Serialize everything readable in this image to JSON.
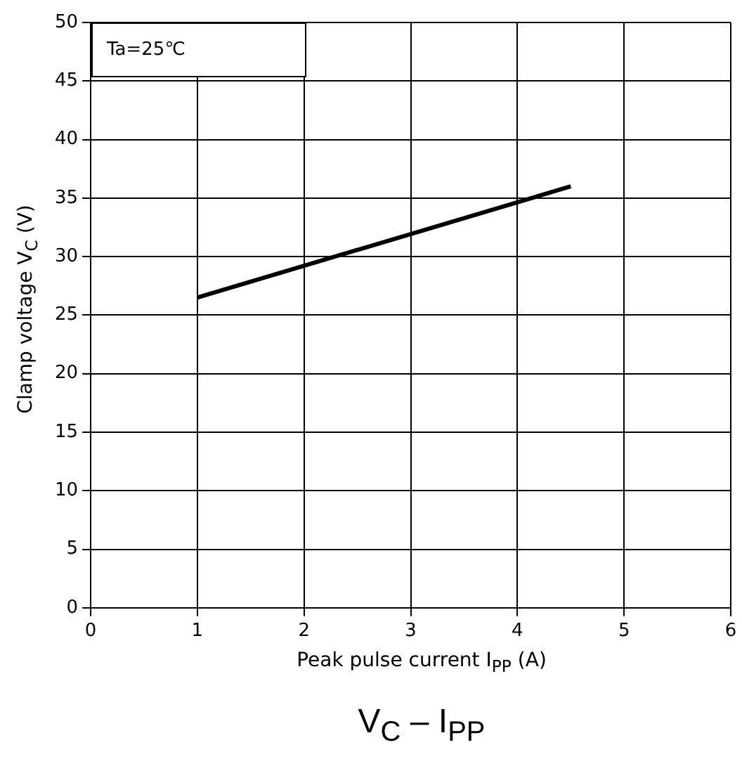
{
  "chart_data": {
    "type": "line",
    "title": "V$_{C}$ – I$_{PP}$",
    "xlabel": "Peak pulse current I$_{PP}$ (A)",
    "ylabel": "Clamp voltage  V$_{C}$ (V)",
    "x": [
      1,
      4.5
    ],
    "series": [
      {
        "color": "#000000",
        "values": [
          26.5,
          36
        ]
      }
    ],
    "xlim": [
      0,
      6
    ],
    "xticks": [
      0,
      1,
      2,
      3,
      4,
      5,
      6
    ],
    "ylim": [
      0,
      50
    ],
    "yticks": [
      0,
      5,
      10,
      15,
      20,
      25,
      30,
      35,
      40,
      45,
      50
    ],
    "grid": true,
    "marker": "none",
    "line_style": "solid",
    "legend": false,
    "annotations": [
      "Ta=25℃"
    ]
  }
}
